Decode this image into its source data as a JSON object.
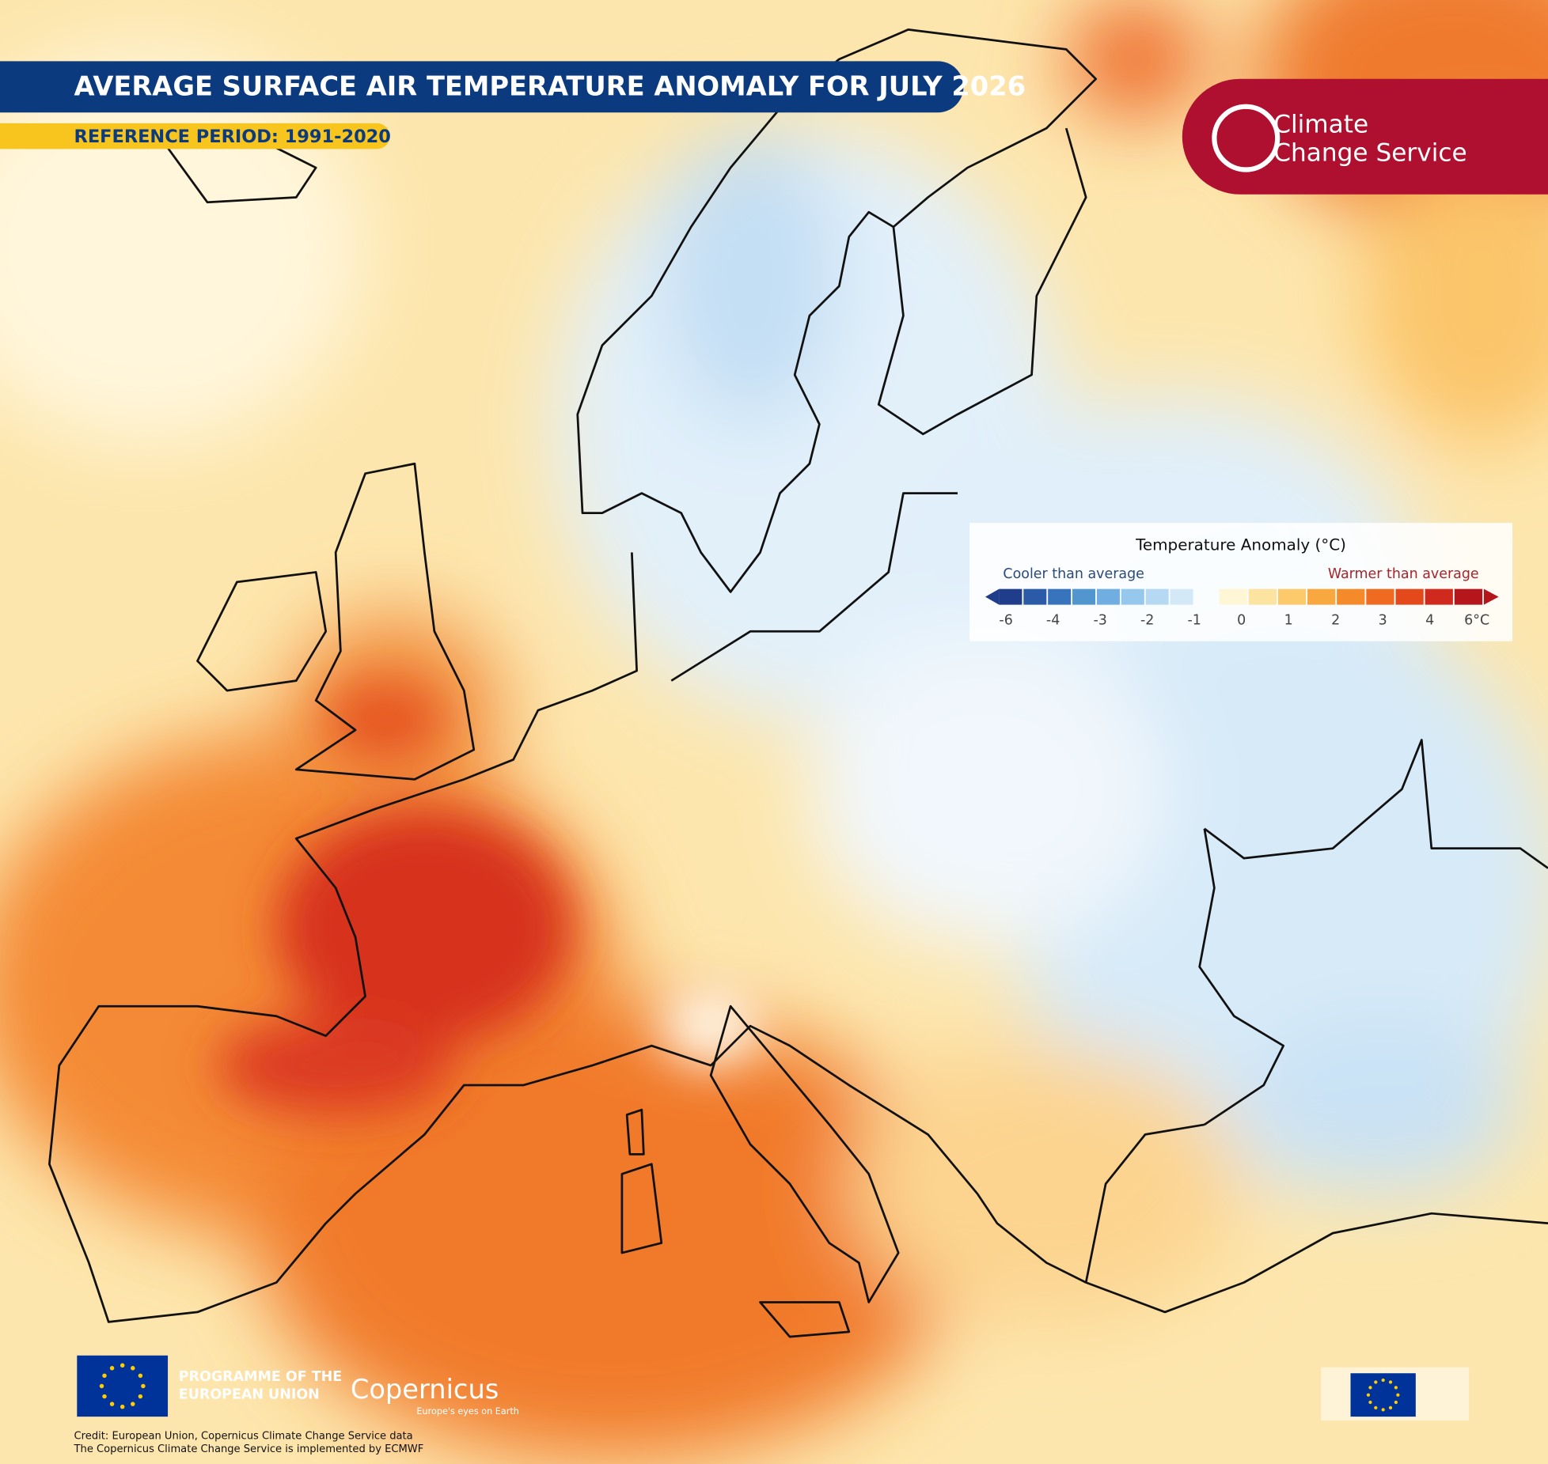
{
  "header": {
    "title": "AVERAGE SURFACE AIR TEMPERATURE ANOMALY FOR JULY 2026",
    "subtitle": "REFERENCE PERIOD: 1991-2020"
  },
  "logo": {
    "lines": [
      "Climate",
      "Change Service"
    ]
  },
  "legend": {
    "title": "Temperature Anomaly (°C)",
    "cooler_label": "Cooler than average",
    "warmer_label": "Warmer than average",
    "ticks": [
      -6,
      -4,
      -3,
      -2,
      -1,
      0,
      1,
      2,
      3,
      4,
      {
        "value": 6,
        "label": "6°C"
      }
    ],
    "cool_colors": [
      "#1f3d8a",
      "#2a5aa8",
      "#3874bd",
      "#5296cf",
      "#70ade0",
      "#96c7ec",
      "#b6d9f3",
      "#d4e9f8"
    ],
    "warm_colors": [
      "#fff6d6",
      "#fde3a0",
      "#fcc96b",
      "#f9a83f",
      "#f58a2a",
      "#f06b22",
      "#e4491c",
      "#cf2a1d",
      "#b5161c"
    ]
  },
  "footer": {
    "programme": [
      "PROGRAMME OF THE",
      "EUROPEAN UNION"
    ],
    "brand": "Copernicus",
    "tagline": "Europe's eyes on Earth",
    "credits": [
      "Credit: European Union, Copernicus Climate Change Service data",
      "The Copernicus Climate Change Service is implemented by ECMWF"
    ]
  }
}
